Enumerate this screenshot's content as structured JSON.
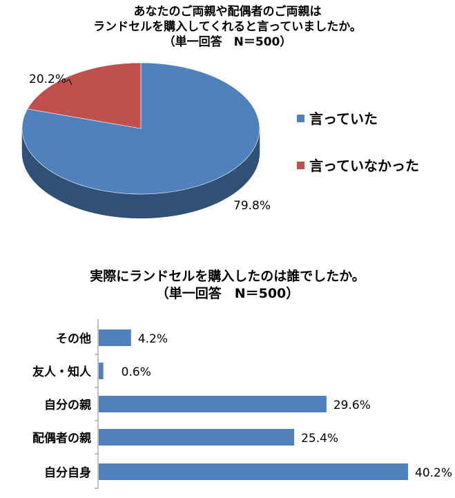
{
  "chart_data": [
    {
      "type": "pie",
      "title": [
        "あなたのご両親や配偶者のご両親は",
        "ランドセルを購入してくれると言っていましたか。",
        "（単一回答　N＝500）"
      ],
      "categories": [
        "言っていた",
        "言っていなかった"
      ],
      "values": [
        79.8,
        20.2
      ],
      "data_labels": [
        "79.8%",
        "20.2%"
      ],
      "colors": [
        "#4F81BD",
        "#C0504D"
      ],
      "legend_position": "right",
      "style": "3d"
    },
    {
      "type": "bar",
      "orientation": "horizontal",
      "title": [
        "実際にランドセルを購入したのは誰でしたか。",
        "（単一回答　N＝500）"
      ],
      "categories": [
        "その他",
        "友人・知人",
        "自分の親",
        "配偶者の親",
        "自分自身"
      ],
      "values": [
        4.2,
        0.6,
        29.6,
        25.4,
        40.2
      ],
      "data_labels": [
        "4.2%",
        "0.6%",
        "29.6%",
        "25.4%",
        "40.2%"
      ],
      "color": "#4F81BD",
      "xlim": [
        0,
        40.2
      ],
      "grid": false
    }
  ]
}
